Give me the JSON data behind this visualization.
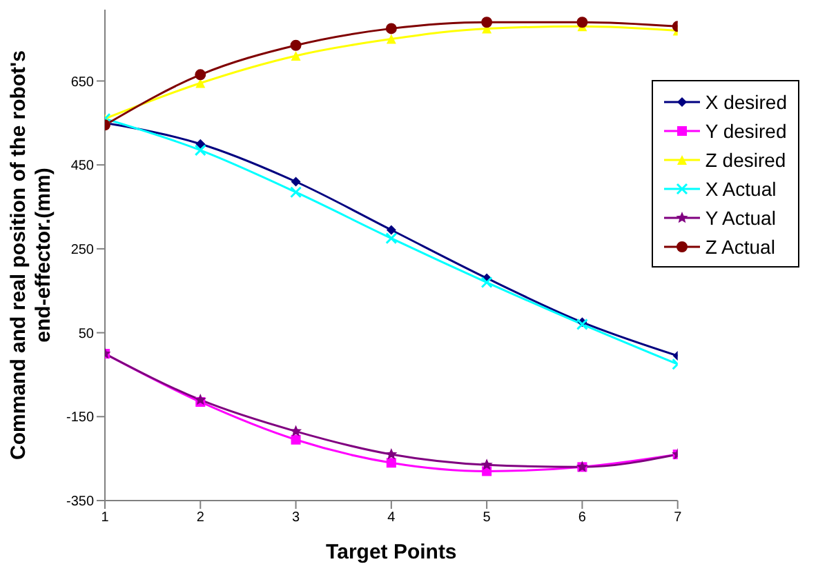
{
  "chart_data": {
    "type": "line",
    "xlabel": "Target Points",
    "ylabel": "Command and real position of the robot's end-effector.(mm)",
    "x": [
      1,
      2,
      3,
      4,
      5,
      6,
      7
    ],
    "xlim": [
      1,
      7
    ],
    "xticks": [
      1,
      2,
      3,
      4,
      5,
      6,
      7
    ],
    "ylim": [
      -350,
      820
    ],
    "yticks": [
      -350,
      -150,
      50,
      250,
      450,
      650
    ],
    "grid": false,
    "legend": "right",
    "line_style": "solid",
    "series": [
      {
        "name": "X desired",
        "color": "#000080",
        "marker": "diamond",
        "values": [
          550,
          500,
          410,
          295,
          180,
          75,
          -5
        ]
      },
      {
        "name": "Y desired",
        "color": "#ff00ff",
        "marker": "square",
        "values": [
          0,
          -115,
          -205,
          -260,
          -280,
          -270,
          -240
        ]
      },
      {
        "name": "Z desired",
        "color": "#ffff00",
        "marker": "triangle",
        "values": [
          560,
          645,
          710,
          750,
          775,
          780,
          770
        ]
      },
      {
        "name": "X Actual",
        "color": "#00ffff",
        "marker": "cross",
        "values": [
          560,
          485,
          385,
          275,
          170,
          70,
          -25
        ]
      },
      {
        "name": "Y Actual",
        "color": "#800080",
        "marker": "star",
        "values": [
          0,
          -110,
          -185,
          -240,
          -265,
          -270,
          -240
        ]
      },
      {
        "name": "Z Actual",
        "color": "#800000",
        "marker": "circle",
        "values": [
          545,
          665,
          735,
          775,
          790,
          790,
          780
        ]
      }
    ]
  }
}
